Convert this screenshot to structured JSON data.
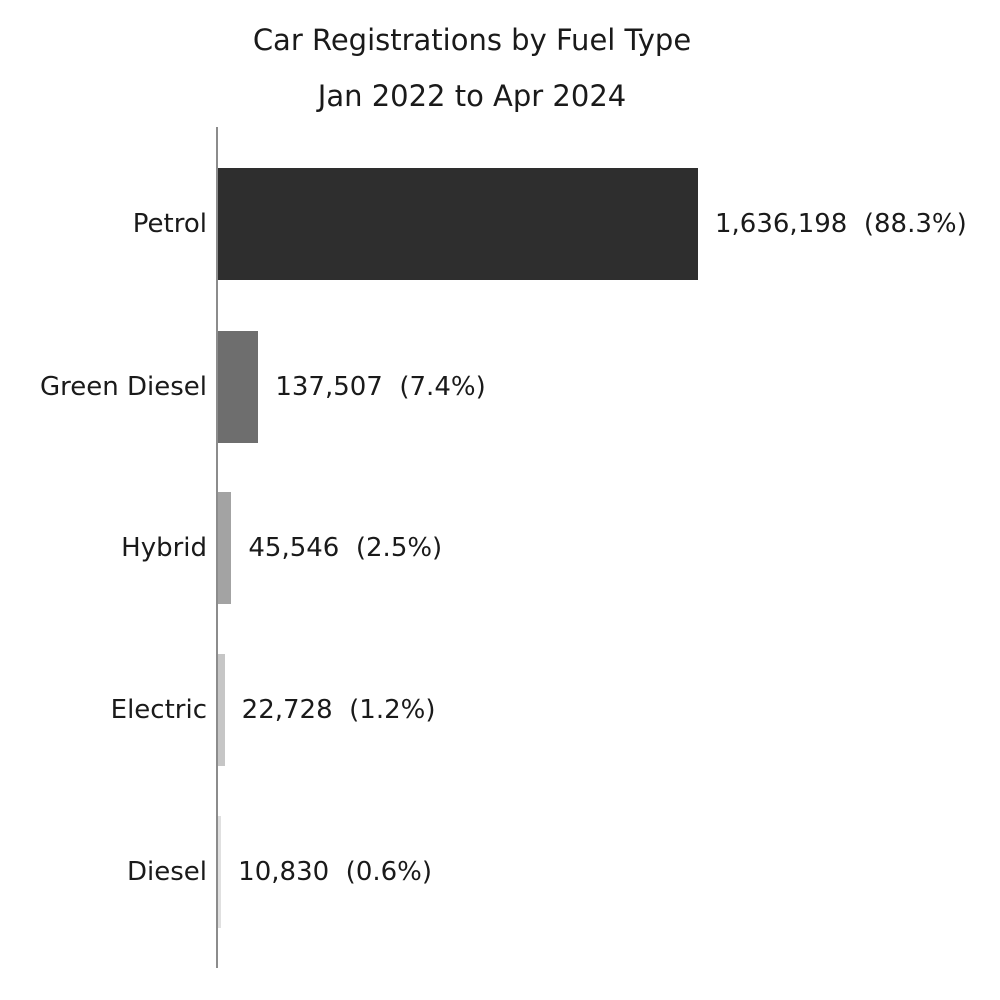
{
  "title": "Car Registrations by Fuel Type",
  "subtitle": "Jan 2022 to Apr 2024",
  "colors": {
    "axis": "#8c8c8c",
    "text": "#1a1a1a",
    "background": "#ffffff"
  },
  "chart_data": {
    "type": "bar",
    "orientation": "horizontal",
    "title": "Car Registrations by Fuel Type",
    "subtitle": "Jan 2022 to Apr 2024",
    "categories": [
      "Petrol",
      "Green Diesel",
      "Hybrid",
      "Electric",
      "Diesel"
    ],
    "values": [
      1636198,
      137507,
      45546,
      22728,
      10830
    ],
    "percentages": [
      88.3,
      7.4,
      2.5,
      1.2,
      0.6
    ],
    "value_labels": [
      "1,636,198  (88.3%)",
      "137,507  (7.4%)",
      "45,546  (2.5%)",
      "22,728  (1.2%)",
      "10,830  (0.6%)"
    ],
    "bar_colors": [
      "#2e2e2e",
      "#6e6e6e",
      "#a3a3a3",
      "#c6c6c6",
      "#e0e0e0"
    ],
    "xlim": [
      0,
      1636198
    ],
    "grid": false,
    "legend": "none"
  }
}
